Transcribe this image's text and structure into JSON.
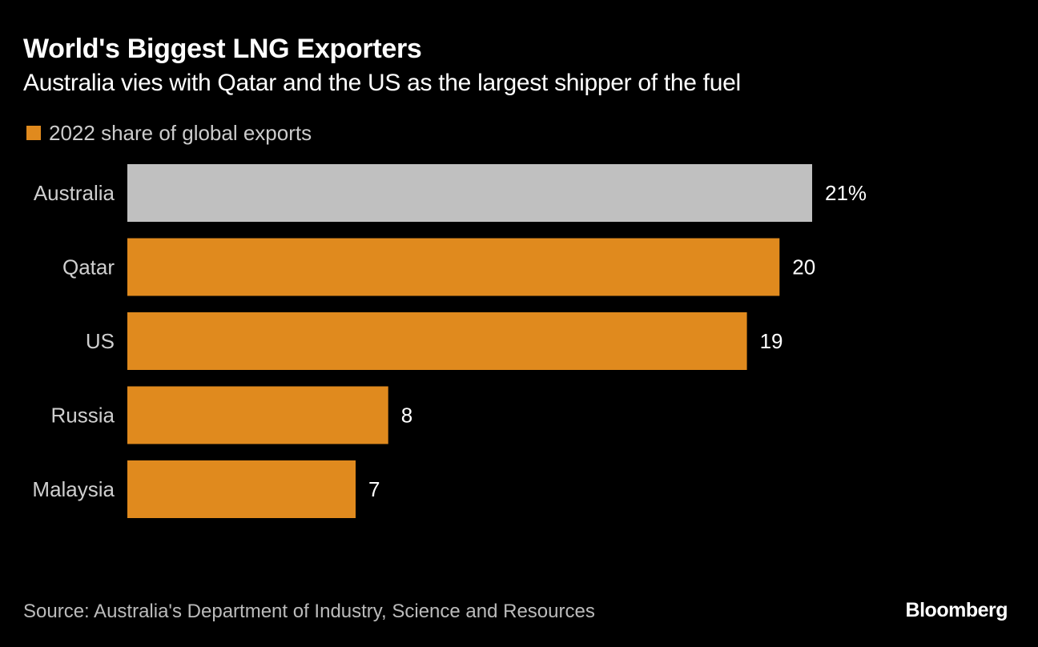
{
  "chart_data": {
    "type": "bar",
    "orientation": "horizontal",
    "title": "World's Biggest LNG Exporters",
    "subtitle": "Australia vies with Qatar and the US as the largest shipper of the fuel",
    "legend": [
      {
        "label": "2022 share of global exports",
        "color": "#e08a1e"
      }
    ],
    "categories": [
      "Australia",
      "Qatar",
      "US",
      "Russia",
      "Malaysia"
    ],
    "values": [
      21,
      20,
      19,
      8,
      7
    ],
    "value_labels": [
      "21%",
      "20",
      "19",
      "8",
      "7"
    ],
    "bar_colors": [
      "#c0c0c0",
      "#e08a1e",
      "#e08a1e",
      "#e08a1e",
      "#e08a1e"
    ],
    "xlim": [
      0,
      21
    ],
    "unit": "%",
    "xlabel": "",
    "ylabel": "",
    "grid": false,
    "source": "Source: Australia's Department of Industry, Science and Resources"
  },
  "brand": "Bloomberg",
  "colors": {
    "background": "#000000",
    "highlight_bar": "#c0c0c0",
    "accent_bar": "#e08a1e",
    "text": "#ffffff"
  }
}
